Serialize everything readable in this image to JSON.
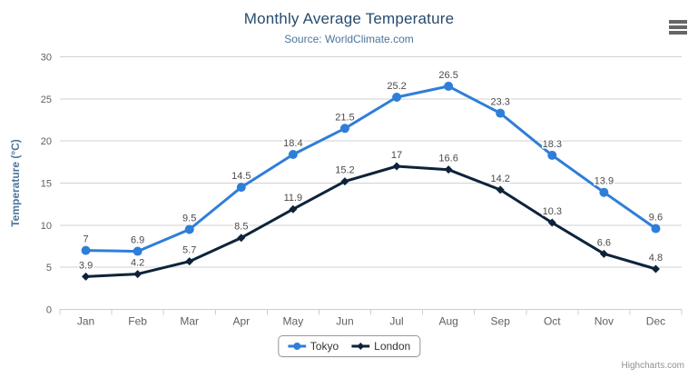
{
  "chart": {
    "credits_label": "Highcharts.com"
  },
  "chart_data": {
    "type": "line",
    "title": "Monthly Average Temperature",
    "subtitle": "Source: WorldClimate.com",
    "categories": [
      "Jan",
      "Feb",
      "Mar",
      "Apr",
      "May",
      "Jun",
      "Jul",
      "Aug",
      "Sep",
      "Oct",
      "Nov",
      "Dec"
    ],
    "series": [
      {
        "name": "Tokyo",
        "color": "#2f7ed8",
        "marker": "circle",
        "values": [
          7,
          6.9,
          9.5,
          14.5,
          18.4,
          21.5,
          25.2,
          26.5,
          23.3,
          18.3,
          13.9,
          9.6
        ]
      },
      {
        "name": "London",
        "color": "#0d233a",
        "marker": "diamond",
        "values": [
          3.9,
          4.2,
          5.7,
          8.5,
          11.9,
          15.2,
          17,
          16.6,
          14.2,
          10.3,
          6.6,
          4.8
        ]
      }
    ],
    "xlabel": "",
    "ylabel": "Temperature (°C)",
    "ylim": [
      0,
      30
    ],
    "yticks": [
      0,
      5,
      10,
      15,
      20,
      25,
      30
    ],
    "grid": true,
    "legend_position": "bottom",
    "data_labels_visible": true,
    "styles": {
      "title_color": "#274b6d",
      "subtitle_color": "#4d759e",
      "axis_label_color": "#606060",
      "axis_title_color": "#4d759e",
      "gridline_color": "#d0d0d0",
      "axis_line_color": "#c0d0e0",
      "data_label_color": "#4a4a4a",
      "data_label_halo": "#ffffff",
      "legend_border_color": "#999999",
      "legend_text_color": "#333333",
      "credits_color": "#909090",
      "menu_icon_color": "#666666",
      "background_color": "#ffffff"
    }
  }
}
